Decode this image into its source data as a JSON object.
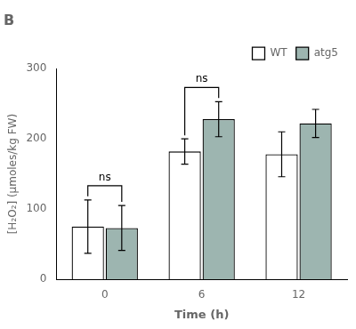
{
  "chart_data": {
    "type": "bar",
    "title": "B",
    "xlabel": "Time (h)",
    "ylabel": "[H₂O₂] (μmoles/kg FW)",
    "categories": [
      "0",
      "6",
      "12"
    ],
    "series": [
      {
        "name": "WT",
        "color": "#ffffff",
        "values": [
          75,
          182,
          178
        ],
        "errors": [
          38,
          18,
          32
        ]
      },
      {
        "name": "atg5",
        "color": "#9db5b0",
        "values": [
          73,
          228,
          222
        ],
        "errors": [
          32,
          25,
          20
        ]
      }
    ],
    "ylim": [
      0,
      300
    ],
    "yticks": [
      0,
      100,
      200,
      300
    ],
    "grid": false,
    "legend": "upper right",
    "annotations": [
      {
        "text": "ns",
        "category": "0"
      },
      {
        "text": "ns",
        "category": "6"
      }
    ]
  }
}
